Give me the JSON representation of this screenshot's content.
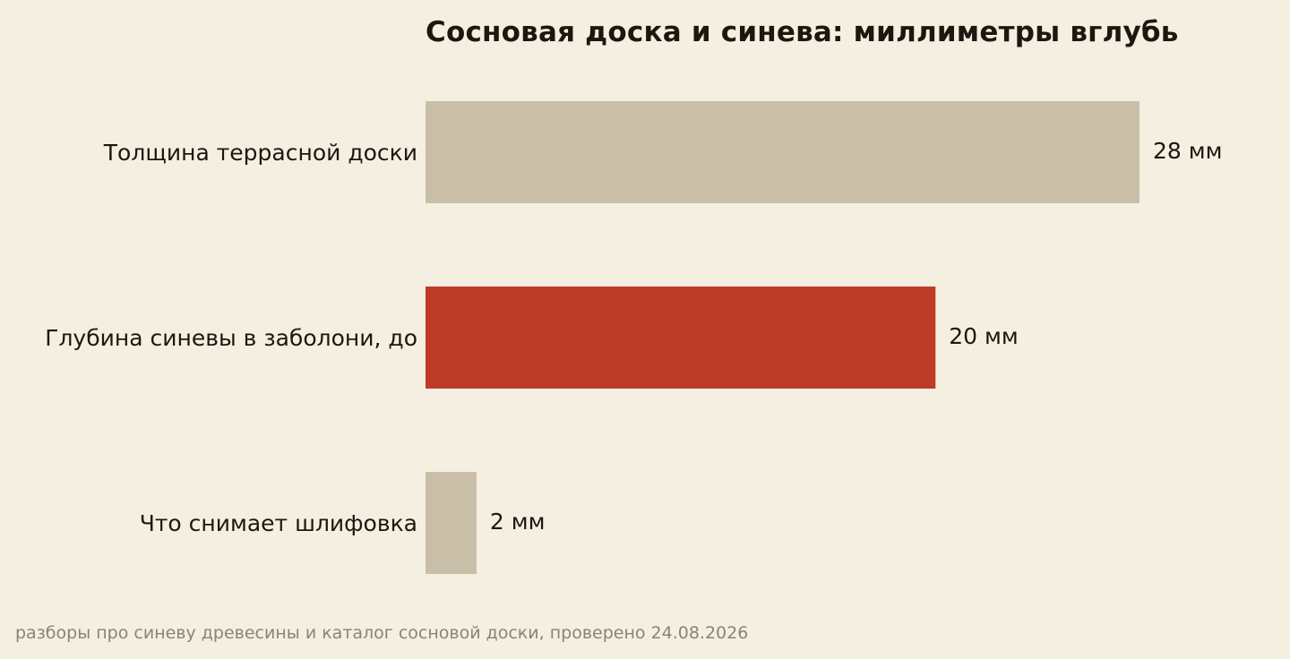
{
  "chart_data": {
    "type": "bar",
    "orientation": "horizontal",
    "title": "Сосновая доска и синева: миллиметры вглубь",
    "categories": [
      "Толщина террасной доски",
      "Глубина синевы в заболони, до",
      "Что снимает шлифовка"
    ],
    "values": [
      28,
      20,
      2
    ],
    "value_labels": [
      "28 мм",
      "20 мм",
      "2 мм"
    ],
    "unit": "мм",
    "xlim": [
      0,
      28
    ],
    "grid": false,
    "colors": [
      "#c9bfa8",
      "#bc3c27",
      "#c9bfa8"
    ],
    "source": "разборы про синеву древесины и каталог сосновой доски, проверено 24.08.2026"
  }
}
